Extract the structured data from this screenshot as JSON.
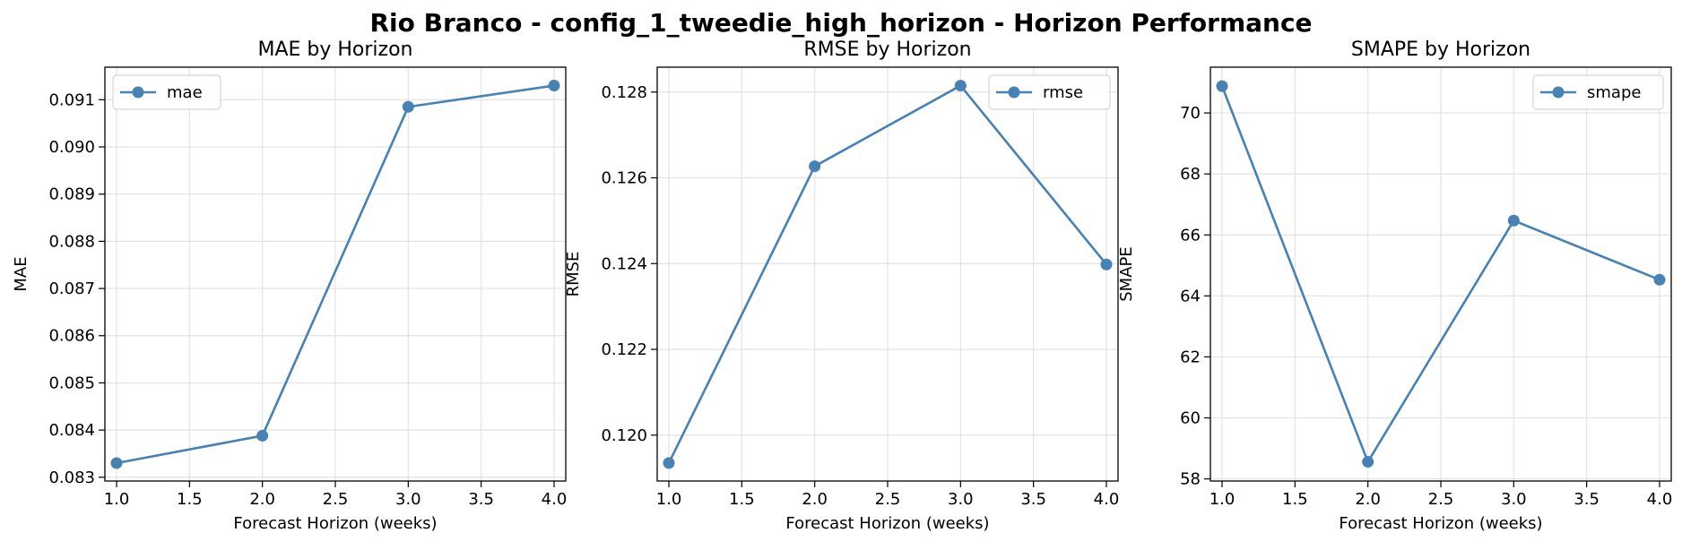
{
  "figure": {
    "suptitle": "Rio Branco - config_1_tweedie_high_horizon - Horizon Performance"
  },
  "chart_data": [
    {
      "type": "line",
      "title": "MAE by Horizon",
      "xlabel": "Forecast Horizon (weeks)",
      "ylabel": "MAE",
      "x": [
        1.0,
        2.0,
        3.0,
        4.0
      ],
      "series": [
        {
          "name": "mae",
          "values": [
            0.0833,
            0.08388,
            0.09085,
            0.0913
          ],
          "color": "#4682b4"
        }
      ],
      "xlim": [
        0.92,
        4.08
      ],
      "ylim": [
        0.08292,
        0.09169
      ],
      "xticks": [
        1.0,
        1.5,
        2.0,
        2.5,
        3.0,
        3.5,
        4.0
      ],
      "xtick_labels": [
        "1.0",
        "1.5",
        "2.0",
        "2.5",
        "3.0",
        "3.5",
        "4.0"
      ],
      "yticks": [
        0.083,
        0.084,
        0.085,
        0.086,
        0.087,
        0.088,
        0.089,
        0.09,
        0.091
      ],
      "ytick_labels": [
        "0.083",
        "0.084",
        "0.085",
        "0.086",
        "0.087",
        "0.088",
        "0.089",
        "0.090",
        "0.091"
      ],
      "grid": true,
      "legend_position": "upper left"
    },
    {
      "type": "line",
      "title": "RMSE by Horizon",
      "xlabel": "Forecast Horizon (weeks)",
      "ylabel": "RMSE",
      "x": [
        1.0,
        2.0,
        3.0,
        4.0
      ],
      "series": [
        {
          "name": "rmse",
          "values": [
            0.11935,
            0.12627,
            0.12815,
            0.12398
          ],
          "color": "#4682b4"
        }
      ],
      "xlim": [
        0.92,
        4.08
      ],
      "ylim": [
        0.11893,
        0.12858
      ],
      "xticks": [
        1.0,
        1.5,
        2.0,
        2.5,
        3.0,
        3.5,
        4.0
      ],
      "xtick_labels": [
        "1.0",
        "1.5",
        "2.0",
        "2.5",
        "3.0",
        "3.5",
        "4.0"
      ],
      "yticks": [
        0.12,
        0.122,
        0.124,
        0.126,
        0.128
      ],
      "ytick_labels": [
        "0.120",
        "0.122",
        "0.124",
        "0.126",
        "0.128"
      ],
      "grid": true,
      "legend_position": "upper right"
    },
    {
      "type": "line",
      "title": "SMAPE by Horizon",
      "xlabel": "Forecast Horizon (weeks)",
      "ylabel": "SMAPE",
      "x": [
        1.0,
        2.0,
        3.0,
        4.0
      ],
      "series": [
        {
          "name": "smape",
          "values": [
            70.88,
            58.56,
            66.47,
            64.53
          ],
          "color": "#4682b4"
        }
      ],
      "xlim": [
        0.92,
        4.08
      ],
      "ylim": [
        57.93,
        71.5
      ],
      "xticks": [
        1.0,
        1.5,
        2.0,
        2.5,
        3.0,
        3.5,
        4.0
      ],
      "xtick_labels": [
        "1.0",
        "1.5",
        "2.0",
        "2.5",
        "3.0",
        "3.5",
        "4.0"
      ],
      "yticks": [
        58,
        60,
        62,
        64,
        66,
        68,
        70
      ],
      "ytick_labels": [
        "58",
        "60",
        "62",
        "64",
        "66",
        "68",
        "70"
      ],
      "grid": true,
      "legend_position": "upper right"
    }
  ]
}
